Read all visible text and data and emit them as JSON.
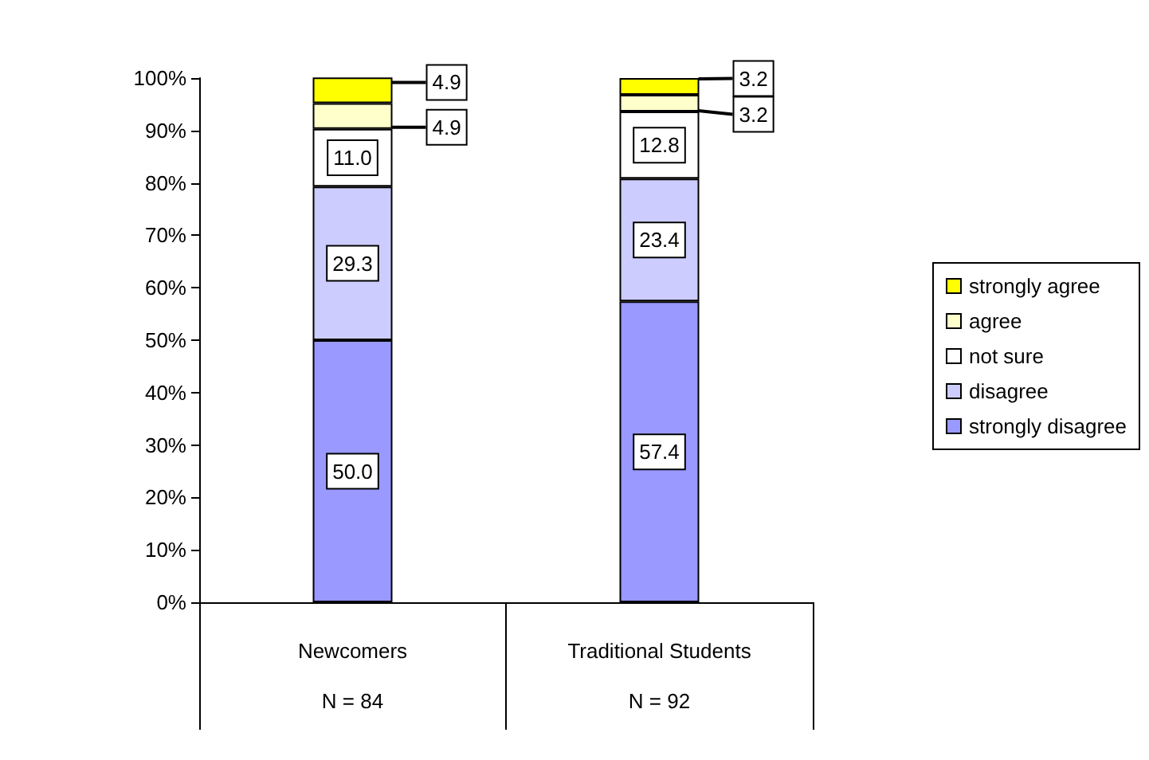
{
  "chart_data": {
    "type": "bar",
    "stacked": true,
    "categories": [
      "Newcomers",
      "Traditional Students"
    ],
    "series": [
      {
        "name": "strongly disagree",
        "color": "#9999ff",
        "values": [
          50.0,
          57.4
        ],
        "value_labels": [
          "50.0",
          "57.4"
        ]
      },
      {
        "name": "disagree",
        "color": "#ccccff",
        "values": [
          29.3,
          23.4
        ],
        "value_labels": [
          "29.3",
          "23.4"
        ]
      },
      {
        "name": "not sure",
        "color": "#ffffff",
        "values": [
          11.0,
          12.8
        ],
        "value_labels": [
          "11.0",
          "12.8"
        ]
      },
      {
        "name": "agree",
        "color": "#ffffcc",
        "values": [
          4.9,
          3.2
        ],
        "value_labels": [
          "4.9",
          "3.2"
        ]
      },
      {
        "name": "strongly agree",
        "color": "#ffff00",
        "values": [
          4.9,
          3.2
        ],
        "value_labels": [
          "4.9",
          "3.2"
        ]
      }
    ],
    "ylim": [
      0,
      100
    ],
    "yticks": [
      {
        "value": 0,
        "label": "0%"
      },
      {
        "value": 10,
        "label": "10%"
      },
      {
        "value": 20,
        "label": "20%"
      },
      {
        "value": 30,
        "label": "30%"
      },
      {
        "value": 40,
        "label": "40%"
      },
      {
        "value": 50,
        "label": "50%"
      },
      {
        "value": 60,
        "label": "60%"
      },
      {
        "value": 70,
        "label": "70%"
      },
      {
        "value": 80,
        "label": "80%"
      },
      {
        "value": 90,
        "label": "90%"
      },
      {
        "value": 100,
        "label": "100%"
      }
    ],
    "annotations": [
      "N = 84",
      "N = 92"
    ],
    "grid": false,
    "legend": "right"
  }
}
